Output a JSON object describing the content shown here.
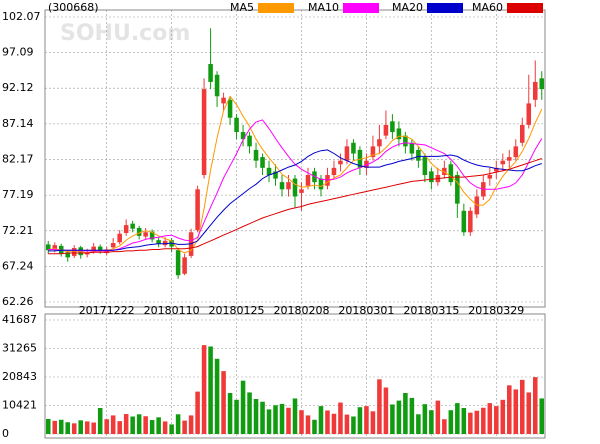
{
  "chart_data": {
    "type": "candlestick",
    "title": "(300668)",
    "watermark": "SOHU.com",
    "up_color": "#f03a3a",
    "down_color": "#119b11",
    "grid": true,
    "categories": [
      null,
      null,
      null,
      null,
      null,
      null,
      null,
      null,
      null,
      "20171222",
      null,
      null,
      null,
      null,
      null,
      null,
      null,
      null,
      null,
      "20180110",
      null,
      null,
      null,
      null,
      null,
      null,
      null,
      null,
      null,
      "20180125",
      null,
      null,
      null,
      null,
      null,
      null,
      null,
      null,
      null,
      "20180208",
      null,
      null,
      null,
      null,
      null,
      null,
      null,
      null,
      null,
      "20180301",
      null,
      null,
      null,
      null,
      null,
      null,
      null,
      null,
      null,
      "20180315",
      null,
      null,
      null,
      null,
      null,
      null,
      null,
      null,
      null,
      "20180329",
      null,
      null,
      null,
      null,
      null,
      null,
      null
    ],
    "open": [
      70.3,
      69.6,
      70.1,
      69.2,
      68.7,
      69.9,
      68.9,
      69.3,
      70.0,
      69.1,
      69.9,
      70.6,
      71.9,
      73.2,
      72.6,
      71.4,
      72.1,
      70.9,
      70.2,
      70.9,
      69.5,
      66.2,
      68.7,
      72.3,
      80.0,
      95.5,
      94.0,
      90.0,
      90.5,
      88.0,
      86.0,
      85.5,
      83.5,
      82.5,
      81.0,
      80.5,
      79.0,
      78.0,
      79.5,
      77.5,
      78.5,
      80.5,
      79.5,
      78.5,
      80.0,
      81.5,
      82.0,
      84.5,
      83.5,
      81.0,
      82.5,
      84.0,
      85.5,
      87.5,
      86.5,
      85.5,
      84.5,
      83.5,
      82.5,
      80.5,
      79.0,
      80.0,
      81.5,
      80.0,
      75.0,
      72.0,
      74.5,
      77.0,
      79.5,
      80.5,
      81.5,
      82.0,
      82.5,
      84.5,
      87.0,
      90.5,
      93.5
    ],
    "high": [
      70.8,
      70.6,
      70.4,
      69.5,
      70.2,
      70.1,
      69.7,
      70.5,
      70.3,
      70.0,
      71.2,
      72.3,
      73.8,
      73.6,
      72.9,
      72.6,
      72.4,
      71.3,
      71.3,
      71.2,
      69.8,
      69.0,
      72.5,
      78.5,
      93.5,
      100.5,
      94.5,
      91.5,
      91.0,
      88.5,
      87.0,
      86.0,
      84.5,
      83.0,
      82.0,
      81.5,
      80.0,
      80.0,
      80.0,
      79.0,
      81.0,
      81.0,
      80.0,
      81.0,
      82.0,
      83.0,
      85.0,
      85.0,
      84.0,
      83.0,
      85.5,
      87.0,
      89.0,
      88.5,
      87.5,
      86.0,
      85.0,
      84.0,
      83.0,
      81.0,
      81.0,
      82.0,
      82.0,
      80.5,
      76.0,
      75.5,
      78.0,
      80.0,
      81.0,
      82.0,
      83.0,
      83.5,
      85.0,
      88.0,
      94.0,
      96.0,
      94.5
    ],
    "low": [
      69.0,
      69.2,
      68.6,
      67.9,
      68.4,
      68.3,
      68.5,
      69.0,
      69.0,
      68.8,
      69.6,
      70.3,
      71.5,
      72.0,
      71.0,
      71.0,
      70.6,
      69.9,
      69.9,
      69.2,
      65.5,
      66.0,
      68.4,
      72.0,
      79.5,
      92.0,
      89.5,
      89.0,
      87.0,
      85.0,
      84.0,
      83.0,
      81.0,
      80.0,
      79.0,
      78.5,
      77.0,
      77.0,
      75.5,
      75.0,
      78.0,
      78.0,
      77.0,
      78.0,
      79.5,
      80.5,
      81.5,
      82.0,
      80.0,
      80.0,
      82.0,
      83.0,
      85.0,
      85.0,
      84.0,
      83.0,
      82.0,
      81.0,
      79.0,
      78.0,
      78.5,
      79.5,
      78.5,
      74.0,
      71.5,
      71.5,
      74.0,
      76.5,
      78.5,
      79.5,
      80.5,
      81.0,
      82.0,
      84.0,
      86.5,
      89.5,
      90.5
    ],
    "close": [
      69.5,
      70.2,
      69.0,
      68.5,
      69.8,
      68.8,
      69.2,
      70.0,
      69.4,
      69.6,
      70.5,
      71.8,
      73.0,
      72.5,
      71.5,
      72.0,
      71.0,
      70.4,
      70.8,
      70.0,
      66.0,
      68.5,
      72.0,
      78.0,
      92.0,
      93.0,
      91.0,
      90.8,
      88.0,
      86.0,
      85.0,
      84.0,
      82.0,
      81.0,
      80.0,
      79.5,
      78.0,
      79.0,
      77.0,
      78.0,
      80.0,
      79.0,
      78.0,
      80.0,
      81.0,
      82.0,
      84.0,
      83.0,
      81.0,
      82.0,
      84.0,
      85.0,
      87.0,
      86.0,
      85.0,
      84.0,
      83.0,
      82.0,
      80.0,
      79.0,
      80.0,
      81.0,
      79.0,
      76.0,
      72.0,
      75.0,
      77.0,
      79.0,
      80.0,
      81.0,
      82.0,
      82.5,
      84.0,
      87.0,
      90.0,
      93.0,
      92.0
    ],
    "ylim": [
      62.26,
      102.07
    ],
    "yticks": [
      62.26,
      67.24,
      72.21,
      77.19,
      82.17,
      87.14,
      92.12,
      97.09,
      102.07
    ],
    "series": [
      {
        "name": "MA5",
        "color": "#ff9900",
        "values": [
          69.6,
          69.7,
          69.5,
          69.3,
          69.4,
          69.3,
          69.1,
          69.3,
          69.4,
          69.4,
          69.7,
          70.1,
          70.9,
          71.5,
          71.9,
          72.2,
          72.0,
          71.5,
          71.1,
          70.8,
          69.6,
          69.1,
          69.5,
          70.9,
          75.3,
          80.7,
          85.2,
          89.0,
          91.0,
          89.8,
          88.2,
          86.8,
          85.0,
          83.6,
          82.4,
          81.3,
          80.1,
          79.5,
          78.7,
          78.3,
          78.4,
          78.6,
          78.4,
          79.0,
          79.6,
          80.0,
          81.0,
          82.0,
          82.2,
          82.4,
          82.8,
          83.0,
          83.8,
          84.8,
          85.4,
          85.4,
          85.0,
          84.0,
          82.8,
          81.6,
          80.8,
          80.4,
          79.8,
          79.0,
          77.6,
          76.6,
          75.8,
          75.8,
          76.6,
          78.4,
          79.8,
          80.9,
          81.9,
          83.3,
          85.1,
          87.3,
          89.2
        ]
      },
      {
        "name": "MA10",
        "color": "#ff00ff",
        "values": [
          69.6,
          69.6,
          69.5,
          69.5,
          69.5,
          69.4,
          69.4,
          69.4,
          69.4,
          69.4,
          69.5,
          69.7,
          70.1,
          70.5,
          70.7,
          71.0,
          71.2,
          71.3,
          71.5,
          71.6,
          71.2,
          70.9,
          70.8,
          71.3,
          73.4,
          75.5,
          77.5,
          79.6,
          81.3,
          83.0,
          84.9,
          86.4,
          87.4,
          87.7,
          86.5,
          85.1,
          83.8,
          82.6,
          81.5,
          80.8,
          80.3,
          79.8,
          79.4,
          79.3,
          79.4,
          79.7,
          80.3,
          80.7,
          81.0,
          81.4,
          81.8,
          82.4,
          83.3,
          83.9,
          84.3,
          84.5,
          84.4,
          84.3,
          84.2,
          83.8,
          83.4,
          83.0,
          82.2,
          81.2,
          79.9,
          78.9,
          78.3,
          78.0,
          78.0,
          78.0,
          78.2,
          78.4,
          78.9,
          80.0,
          81.8,
          83.6,
          85.1
        ]
      },
      {
        "name": "MA20",
        "color": "#0000cc",
        "values": [
          69.4,
          69.4,
          69.5,
          69.5,
          69.5,
          69.5,
          69.5,
          69.5,
          69.5,
          69.5,
          69.5,
          69.6,
          69.8,
          69.9,
          70.0,
          70.2,
          70.3,
          70.4,
          70.4,
          70.5,
          70.3,
          70.3,
          70.4,
          70.8,
          71.9,
          73.0,
          74.1,
          75.1,
          76.0,
          76.7,
          77.4,
          78.1,
          78.7,
          79.5,
          80.0,
          80.3,
          80.7,
          81.1,
          81.4,
          81.9,
          82.6,
          83.1,
          83.4,
          83.5,
          83.0,
          82.4,
          82.0,
          81.6,
          81.3,
          81.1,
          81.1,
          81.1,
          81.4,
          81.6,
          81.9,
          82.1,
          82.3,
          82.6,
          82.6,
          82.6,
          82.6,
          82.7,
          82.8,
          82.6,
          82.1,
          81.7,
          81.4,
          81.2,
          81.1,
          80.9,
          80.8,
          80.7,
          80.6,
          80.6,
          80.9,
          81.3,
          81.6
        ]
      },
      {
        "name": "MA60",
        "color": "#dd0000",
        "values": [
          69.0,
          69.0,
          69.0,
          69.1,
          69.1,
          69.1,
          69.1,
          69.2,
          69.2,
          69.2,
          69.3,
          69.3,
          69.4,
          69.4,
          69.5,
          69.5,
          69.6,
          69.6,
          69.7,
          69.7,
          69.7,
          69.7,
          69.8,
          70.0,
          70.4,
          70.8,
          71.2,
          71.6,
          72.0,
          72.4,
          72.8,
          73.2,
          73.6,
          74.0,
          74.3,
          74.6,
          74.9,
          75.2,
          75.4,
          75.6,
          75.9,
          76.1,
          76.3,
          76.5,
          76.7,
          76.9,
          77.1,
          77.3,
          77.5,
          77.7,
          77.9,
          78.1,
          78.3,
          78.5,
          78.7,
          78.9,
          79.1,
          79.2,
          79.3,
          79.4,
          79.5,
          79.6,
          79.7,
          79.7,
          79.7,
          79.8,
          79.9,
          80.0,
          80.2,
          80.4,
          80.6,
          80.8,
          81.1,
          81.4,
          81.7,
          82.0,
          82.3
        ]
      }
    ],
    "volume": {
      "values": [
        5500,
        4800,
        5200,
        4300,
        3900,
        5000,
        4600,
        4200,
        9500,
        5400,
        6800,
        4700,
        7300,
        6400,
        7200,
        6500,
        5100,
        6100,
        4600,
        3500,
        7200,
        4900,
        6800,
        15500,
        32500,
        32000,
        27500,
        23000,
        15000,
        12500,
        19500,
        15200,
        12800,
        11800,
        9000,
        10500,
        11000,
        9600,
        13000,
        8700,
        6800,
        5200,
        10200,
        8600,
        7400,
        11500,
        7100,
        6400,
        9800,
        10200,
        8300,
        20000,
        17000,
        10800,
        12200,
        15000,
        13200,
        7200,
        10900,
        8700,
        12200,
        5400,
        8700,
        11300,
        9500,
        7800,
        8500,
        9600,
        11300,
        10200,
        12500,
        17800,
        16300,
        19800,
        15200,
        20800,
        13000
      ],
      "ylim": [
        0,
        41687
      ],
      "yticks": [
        0,
        10421,
        20843,
        31265,
        41687
      ]
    }
  }
}
